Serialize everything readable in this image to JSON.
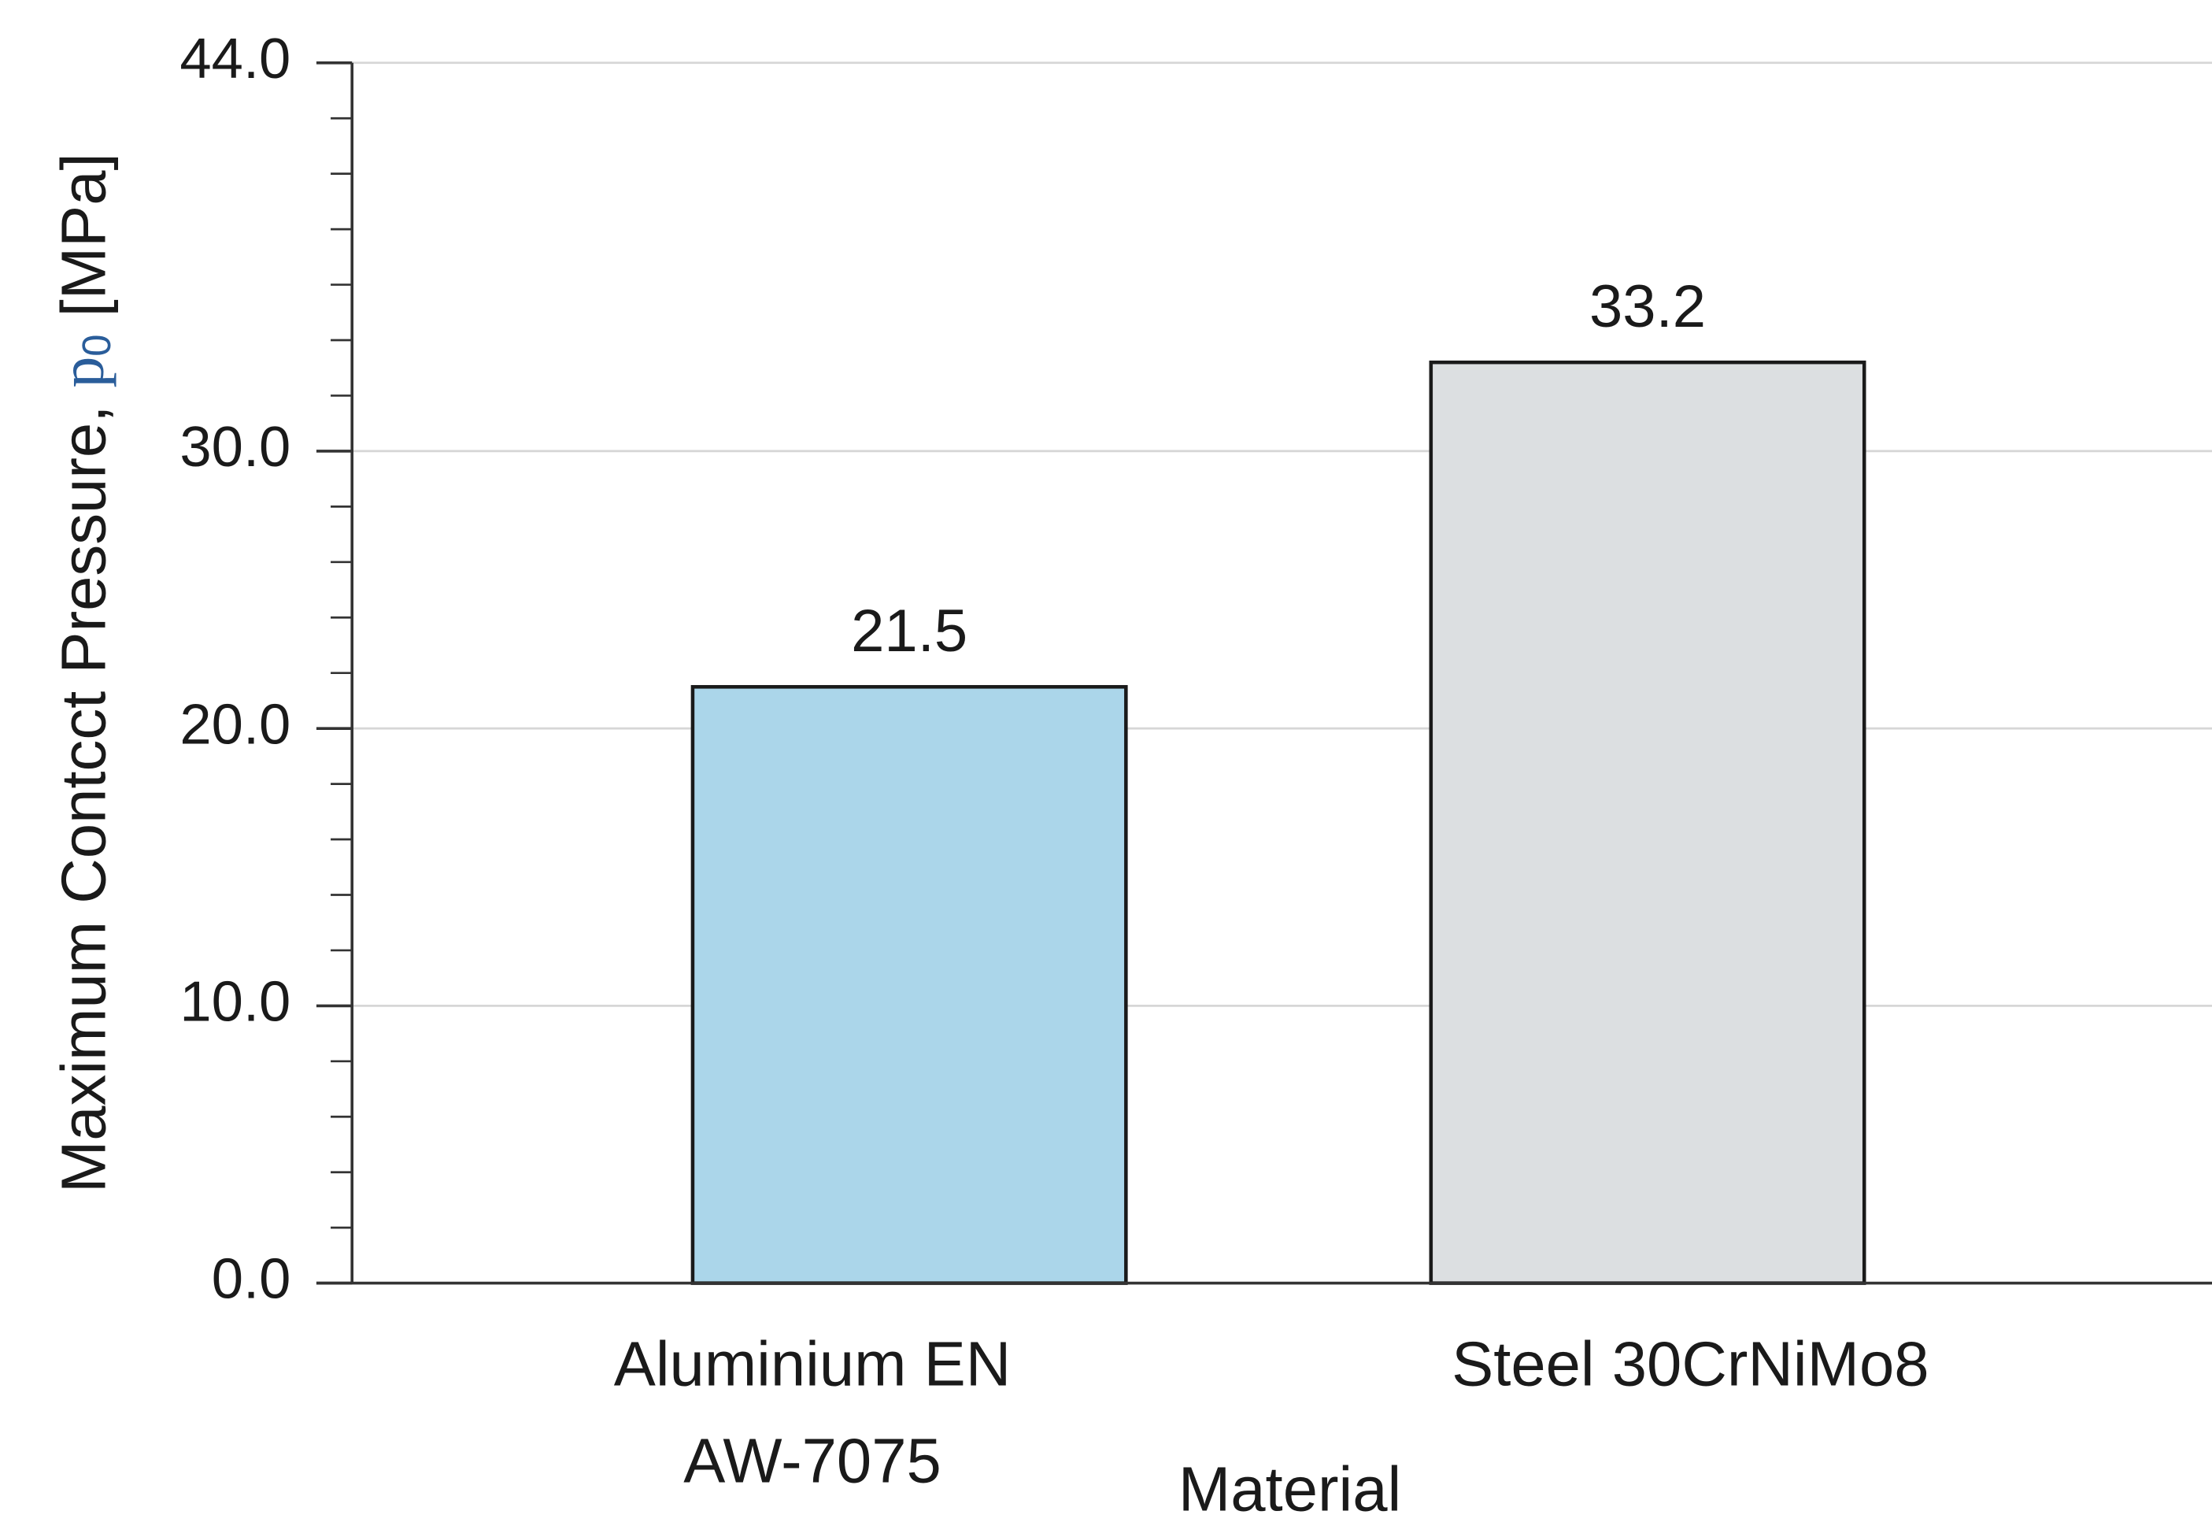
{
  "chart_data": {
    "type": "bar",
    "y_label": {
      "text": "Maximum Contcct Pressure, ",
      "symbol": "p",
      "subscript": "0",
      "unit": " [MPa]"
    },
    "x_label": "Material",
    "categories": [
      [
        "Aluminium EN",
        "AW-7075"
      ],
      [
        "Steel 30CrNiMo8"
      ]
    ],
    "series": [
      {
        "values": [
          21.5,
          33.2
        ],
        "colors": [
          "#abd6ea",
          "#dcdfe1"
        ]
      }
    ],
    "ylim": [
      0,
      44
    ],
    "yticks": [
      {
        "value": 0,
        "label": "0.0"
      },
      {
        "value": 10,
        "label": "10.0"
      },
      {
        "value": 20,
        "label": "20.0"
      },
      {
        "value": 30,
        "label": "30.0"
      },
      {
        "value": 44,
        "label": "44.0"
      }
    ],
    "yticks_minor": [
      2,
      4,
      6,
      8,
      12,
      14,
      16,
      18,
      22,
      24,
      26,
      28,
      32,
      34,
      36,
      38,
      40,
      42
    ],
    "grid": true
  }
}
